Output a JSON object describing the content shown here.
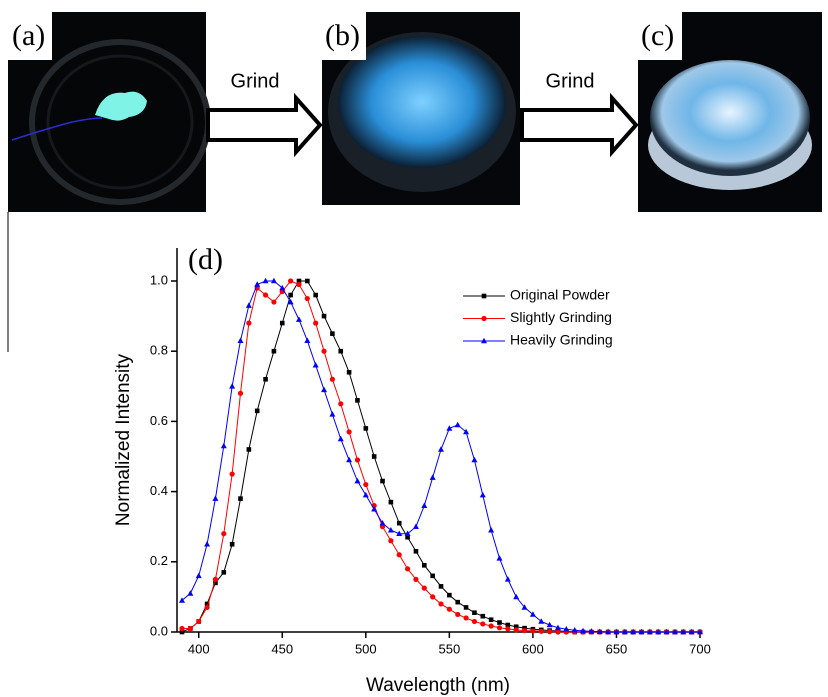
{
  "panels": [
    {
      "label": "(a)"
    },
    {
      "label": "(b)"
    },
    {
      "label": "(c)"
    }
  ],
  "arrows": [
    {
      "label": "Grind"
    },
    {
      "label": "Grind"
    }
  ],
  "chart_data": {
    "type": "line",
    "panel_label": "(d)",
    "x_label": "Wavelength (nm)",
    "y_label": "Normalized Intensity",
    "xlim": [
      387,
      700
    ],
    "ylim": [
      0,
      1.094
    ],
    "xticks": [
      400,
      450,
      500,
      550,
      600,
      650,
      700
    ],
    "yticks": [
      {
        "value": 0,
        "label": "0.0"
      },
      0.2,
      0.4,
      0.6,
      0.8,
      {
        "value": 1,
        "label": "1.0"
      }
    ],
    "legend": "upper right",
    "x": [
      390,
      395,
      400,
      405,
      410,
      415,
      420,
      425,
      430,
      435,
      440,
      445,
      450,
      455,
      460,
      465,
      470,
      475,
      480,
      485,
      490,
      495,
      500,
      505,
      510,
      515,
      520,
      525,
      530,
      535,
      540,
      545,
      550,
      555,
      560,
      565,
      570,
      575,
      580,
      585,
      590,
      595,
      600,
      605,
      610,
      615,
      620,
      625,
      630,
      635,
      640,
      645,
      650,
      655,
      660,
      665,
      670,
      675,
      680,
      685,
      690,
      695,
      700
    ],
    "series": [
      {
        "name": "Original Powder",
        "color": "#000000",
        "marker": "square",
        "values": [
          0,
          0.01,
          0.03,
          0.08,
          0.14,
          0.17,
          0.25,
          0.38,
          0.52,
          0.63,
          0.72,
          0.8,
          0.88,
          0.96,
          1,
          1,
          0.96,
          0.9,
          0.85,
          0.8,
          0.74,
          0.66,
          0.58,
          0.5,
          0.43,
          0.37,
          0.31,
          0.27,
          0.23,
          0.19,
          0.16,
          0.13,
          0.105,
          0.085,
          0.07,
          0.055,
          0.045,
          0.035,
          0.027,
          0.02,
          0.015,
          0.011,
          0.008,
          0.006,
          0.004,
          0.003,
          0.002,
          0,
          0,
          0,
          0,
          0,
          0,
          0,
          0,
          0,
          0,
          0,
          0,
          0,
          0,
          0,
          0
        ]
      },
      {
        "name": "Slightly Grinding",
        "color": "#ff0000",
        "marker": "circle",
        "values": [
          0.01,
          0.01,
          0.03,
          0.07,
          0.15,
          0.28,
          0.45,
          0.68,
          0.88,
          0.98,
          0.96,
          0.94,
          0.97,
          1,
          0.99,
          0.95,
          0.88,
          0.8,
          0.72,
          0.65,
          0.57,
          0.49,
          0.42,
          0.36,
          0.3,
          0.26,
          0.22,
          0.18,
          0.15,
          0.125,
          0.1,
          0.08,
          0.065,
          0.05,
          0.04,
          0.03,
          0.023,
          0.017,
          0.012,
          0.009,
          0.006,
          0.004,
          0.003,
          0.002,
          0.001,
          0,
          0,
          0,
          0,
          0,
          0,
          0,
          0,
          0,
          0,
          0,
          0,
          0,
          0,
          0,
          0,
          0,
          0
        ]
      },
      {
        "name": "Heavily Grinding",
        "color": "#0000ff",
        "marker": "triangle",
        "values": [
          0.09,
          0.11,
          0.16,
          0.25,
          0.38,
          0.53,
          0.7,
          0.83,
          0.93,
          0.99,
          1,
          1,
          0.98,
          0.94,
          0.89,
          0.83,
          0.76,
          0.69,
          0.62,
          0.55,
          0.49,
          0.43,
          0.39,
          0.35,
          0.31,
          0.29,
          0.28,
          0.28,
          0.3,
          0.36,
          0.44,
          0.52,
          0.58,
          0.59,
          0.57,
          0.49,
          0.39,
          0.29,
          0.21,
          0.15,
          0.1,
          0.07,
          0.05,
          0.03,
          0.02,
          0.012,
          0.008,
          0.005,
          0.003,
          0.002,
          0.001,
          0,
          0,
          0,
          0,
          0,
          0,
          0,
          0,
          0,
          0,
          0,
          0
        ]
      }
    ]
  }
}
